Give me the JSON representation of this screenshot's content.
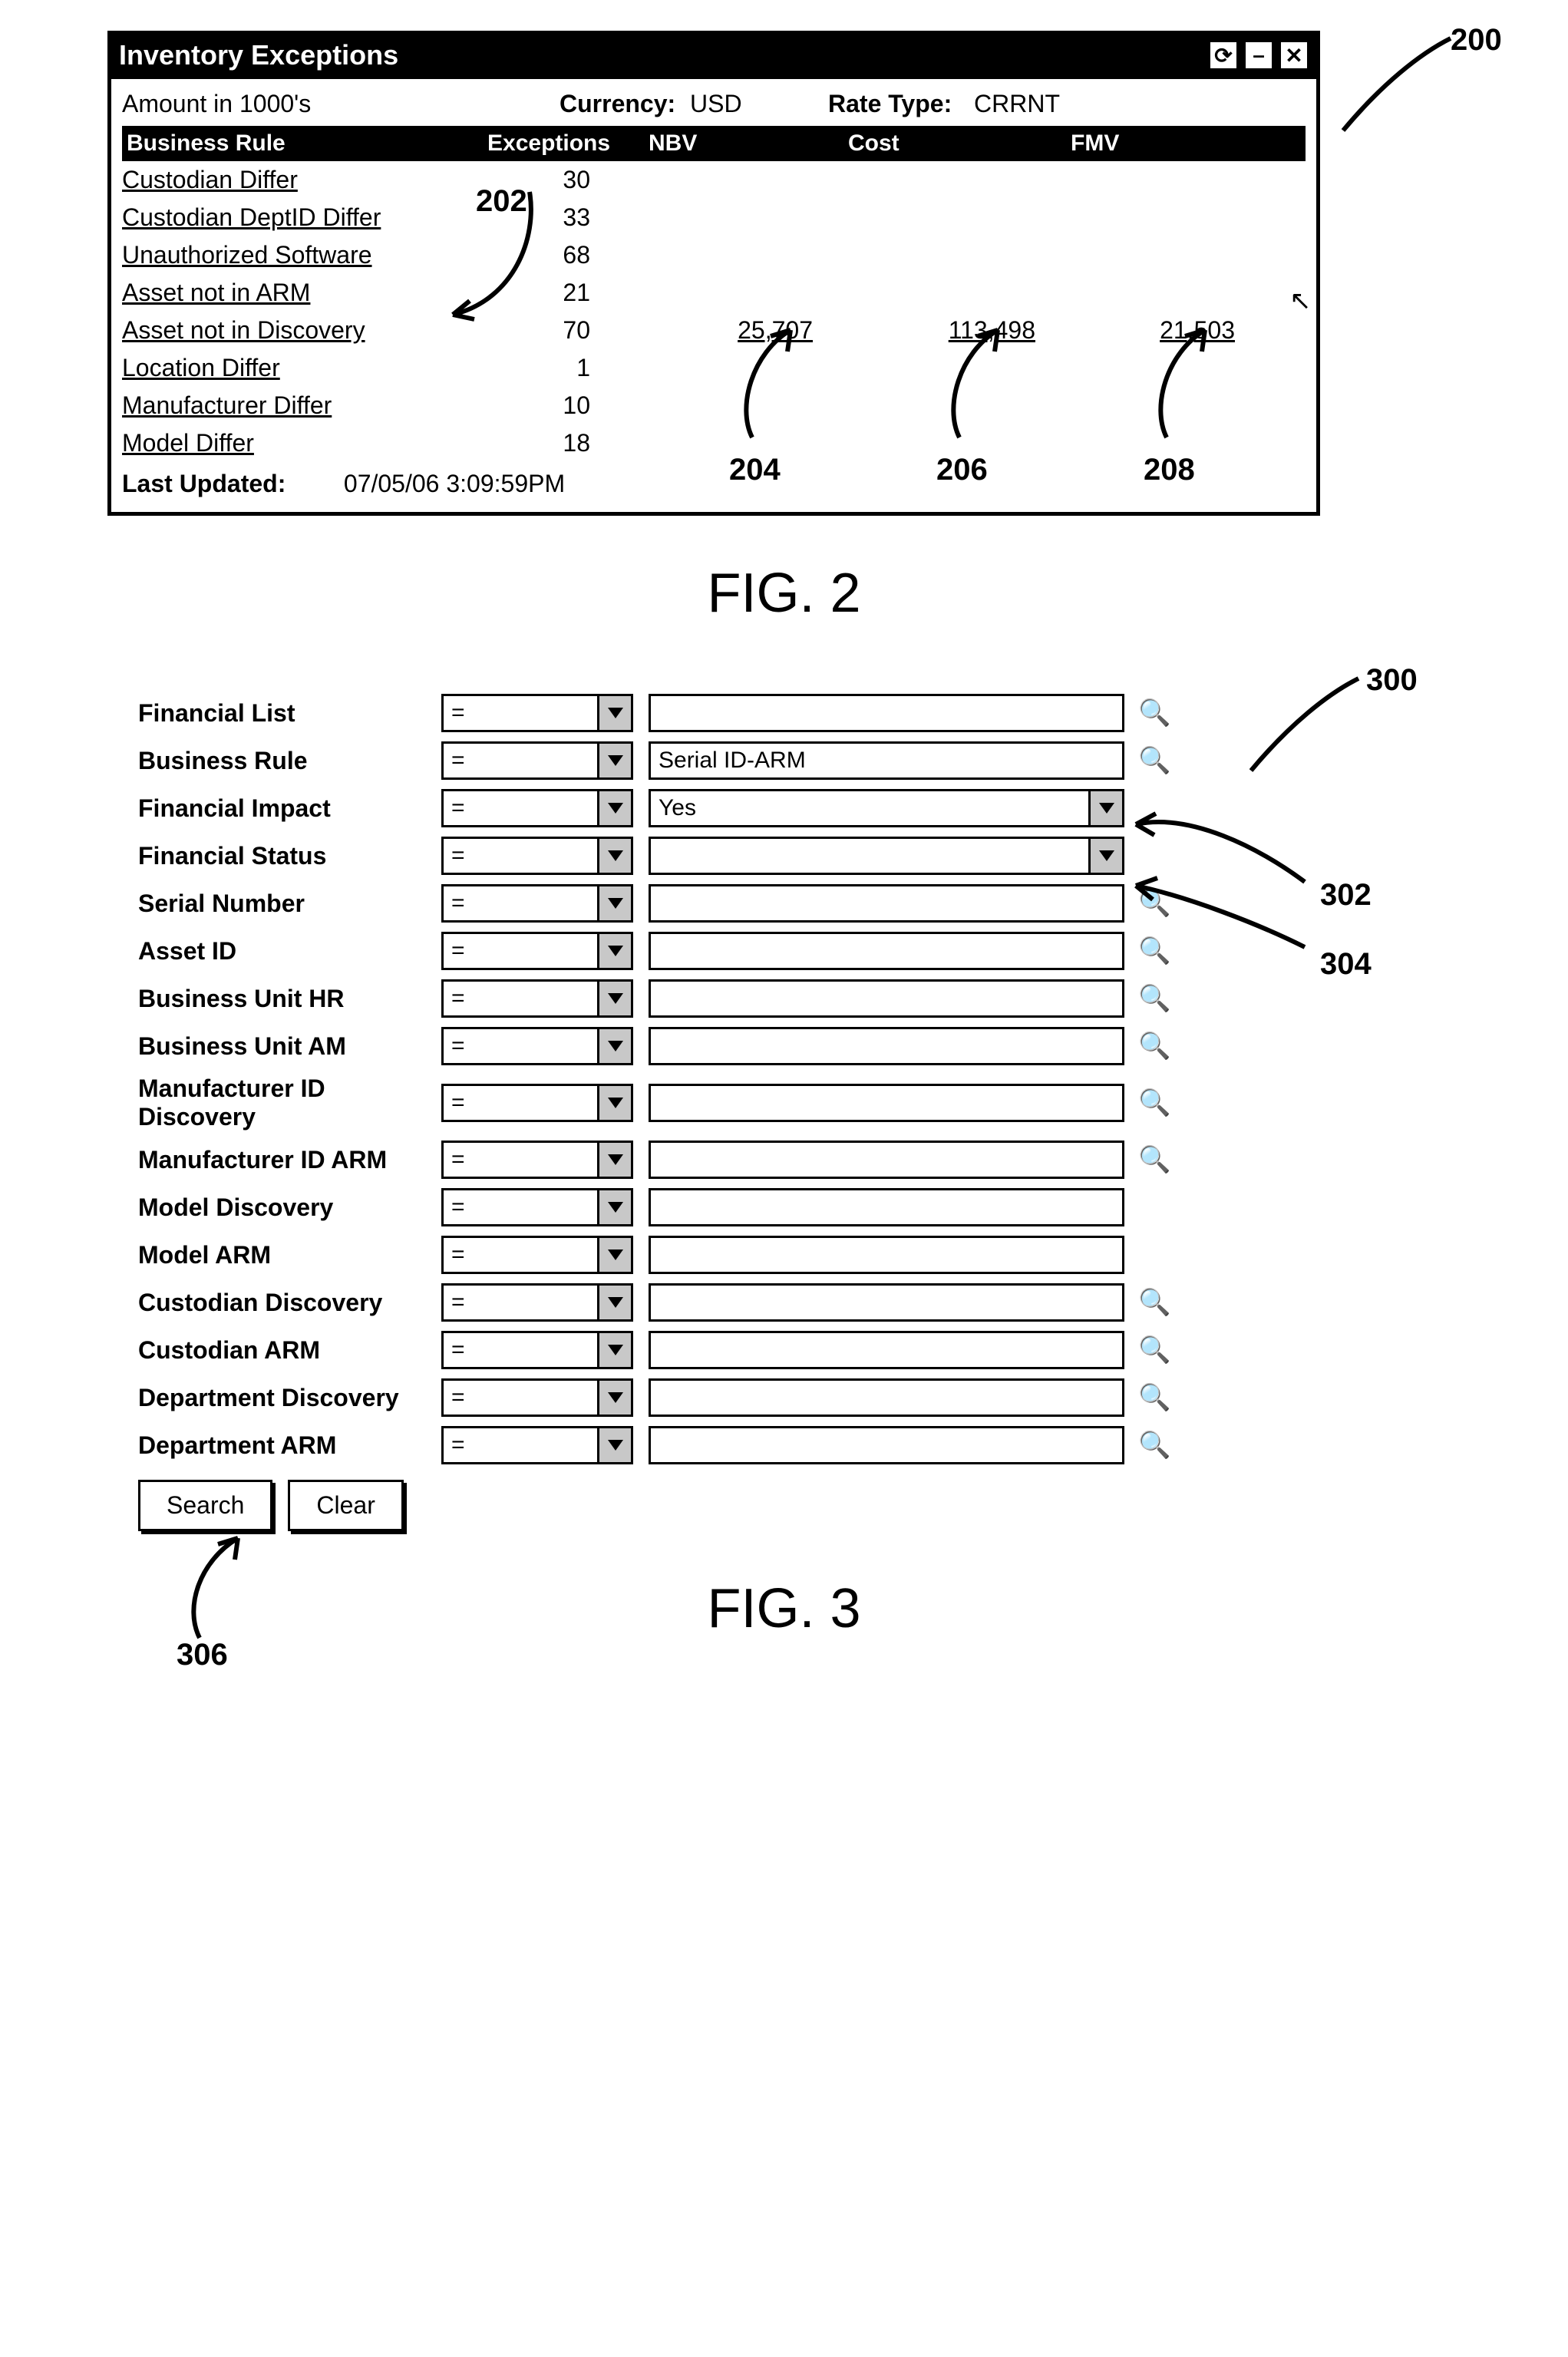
{
  "fig2": {
    "ref": "200",
    "title": "Inventory Exceptions",
    "amount_note": "Amount in 1000's",
    "currency_label": "Currency:",
    "currency_value": "USD",
    "ratetype_label": "Rate Type:",
    "ratetype_value": "CRRNT",
    "columns": {
      "rule": "Business Rule",
      "exc": "Exceptions",
      "nbv": "NBV",
      "cost": "Cost",
      "fmv": "FMV"
    },
    "rows": [
      {
        "rule": "Custodian Differ",
        "exc": "30",
        "nbv": "",
        "cost": "",
        "fmv": ""
      },
      {
        "rule": "Custodian DeptID Differ",
        "exc": "33",
        "nbv": "",
        "cost": "",
        "fmv": ""
      },
      {
        "rule": "Unauthorized Software",
        "exc": "68",
        "nbv": "",
        "cost": "",
        "fmv": ""
      },
      {
        "rule": "Asset not in ARM",
        "exc": "21",
        "nbv": "",
        "cost": "",
        "fmv": ""
      },
      {
        "rule": "Asset not in Discovery",
        "exc": "70",
        "nbv": "25,707",
        "cost": "113,498",
        "fmv": "21,503"
      },
      {
        "rule": "Location Differ",
        "exc": "1",
        "nbv": "",
        "cost": "",
        "fmv": ""
      },
      {
        "rule": "Manufacturer Differ",
        "exc": "10",
        "nbv": "",
        "cost": "",
        "fmv": ""
      },
      {
        "rule": "Model Differ",
        "exc": "18",
        "nbv": "",
        "cost": "",
        "fmv": ""
      }
    ],
    "updated_label": "Last Updated:",
    "updated_value": "07/05/06  3:09:59PM",
    "callouts": {
      "rules": "202",
      "nbv": "204",
      "cost": "206",
      "fmv": "208"
    },
    "caption": "FIG. 2"
  },
  "fig3": {
    "ref": "300",
    "rows": [
      {
        "label": "Financial List",
        "op": "=",
        "val": "",
        "ctrl": "lookup"
      },
      {
        "label": "Business Rule",
        "op": "=",
        "val": "Serial ID-ARM",
        "ctrl": "lookup"
      },
      {
        "label": "Financial Impact",
        "op": "=",
        "val": "Yes",
        "ctrl": "select",
        "ref": "302"
      },
      {
        "label": "Financial Status",
        "op": "=",
        "val": "",
        "ctrl": "select",
        "ref": "304"
      },
      {
        "label": "Serial Number",
        "op": "=",
        "val": "",
        "ctrl": "lookup"
      },
      {
        "label": "Asset ID",
        "op": "=",
        "val": "",
        "ctrl": "lookup"
      },
      {
        "label": "Business Unit HR",
        "op": "=",
        "val": "",
        "ctrl": "lookup"
      },
      {
        "label": "Business Unit AM",
        "op": "=",
        "val": "",
        "ctrl": "lookup"
      },
      {
        "label": "Manufacturer ID Discovery",
        "op": "=",
        "val": "",
        "ctrl": "lookup"
      },
      {
        "label": "Manufacturer ID ARM",
        "op": "=",
        "val": "",
        "ctrl": "lookup"
      },
      {
        "label": "Model Discovery",
        "op": "=",
        "val": "",
        "ctrl": "none"
      },
      {
        "label": "Model ARM",
        "op": "=",
        "val": "",
        "ctrl": "none"
      },
      {
        "label": "Custodian Discovery",
        "op": "=",
        "val": "",
        "ctrl": "lookup"
      },
      {
        "label": "Custodian ARM",
        "op": "=",
        "val": "",
        "ctrl": "lookup"
      },
      {
        "label": "Department Discovery",
        "op": "=",
        "val": "",
        "ctrl": "lookup"
      },
      {
        "label": "Department ARM",
        "op": "=",
        "val": "",
        "ctrl": "lookup"
      }
    ],
    "buttons": {
      "search": "Search",
      "clear": "Clear"
    },
    "callouts": {
      "search": "306"
    },
    "caption": "FIG. 3"
  }
}
